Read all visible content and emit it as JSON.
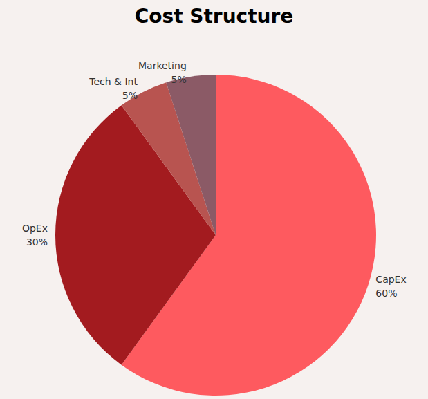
{
  "chart_data": {
    "type": "pie",
    "title": "Cost Structure",
    "categories": [
      "CapEx",
      "OpEx",
      "Tech & Int",
      "Marketing"
    ],
    "values": [
      60,
      30,
      5,
      5
    ],
    "value_labels": [
      "60%",
      "30%",
      "5%",
      "5%"
    ],
    "colors": [
      "#fe5a5f",
      "#a31b1f",
      "#b85450",
      "#8b5a66"
    ],
    "data_labels": true
  }
}
